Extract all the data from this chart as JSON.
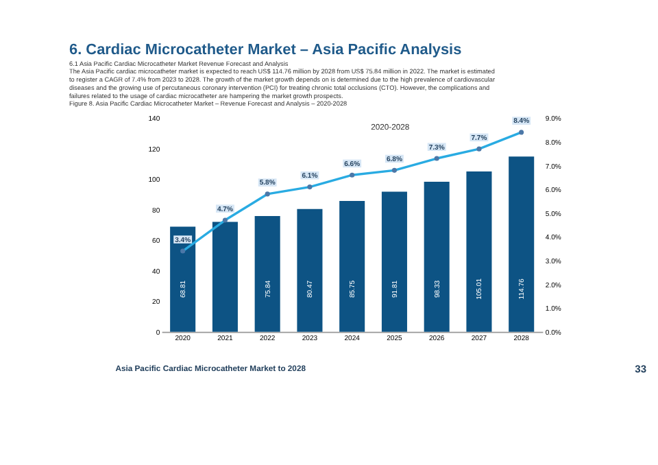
{
  "chart_data": {
    "type": "bar",
    "title": "6. Cardiac Microcatheter Market – Asia Pacific Analysis",
    "subtitle": "6.1 Asia Pacific Cardiac Microcatheter Market Revenue Forecast and Analysis",
    "annotations": [
      "The Asia Pacific cardiac microcatheter market is expected to reach US$ 114.76 million by 2028 from US$ 75.84 million in 2022. The market is estimated to register a CAGR of 7.4% from 2023 to 2028. The growth of the market growth depends on is determined due to the high prevalence of cardiovascular diseases and the growing use of percutaneous coronary intervention (PCI) for treating chronic total occlusions (CTO). However, the complications and failures related to the usage of cardiac microcatheter are hampering the market growth prospects.",
      "Figure 8.  Asia Pacific Cardiac Microcatheter Market – Revenue Forecast and Analysis – 2020-2028",
      "2020-2028",
      "Asia Pacific Cardiac Microcatheter Market to 2028",
      "33"
    ],
    "categories": [
      "2020",
      "2021",
      "2022",
      "2023",
      "2024",
      "2025",
      "2026",
      "2027",
      "2028"
    ],
    "series": [
      {
        "color": "#0d5384",
        "values": [
          68.81,
          72,
          75.84,
          80.47,
          85.75,
          91.81,
          98.33,
          105.01,
          114.76
        ],
        "value_labels": [
          "68.81",
          null,
          "75.84",
          "80.47",
          "85.75",
          "91.81",
          "98.33",
          "105.01",
          "114.76"
        ]
      },
      {
        "type": "line",
        "axis": "y2",
        "color": "#29abe2",
        "values": [
          3.4,
          4.7,
          5.8,
          6.1,
          6.6,
          6.8,
          7.3,
          7.7,
          8.4
        ],
        "value_labels": [
          "3.4%",
          "4.7%",
          "5.8%",
          "6.1%",
          "6.6%",
          "6.8%",
          "7.3%",
          "7.7%",
          "8.4%"
        ]
      }
    ],
    "ylim": [
      0,
      140
    ],
    "yticks": [
      0,
      20,
      40,
      60,
      80,
      100,
      120,
      140
    ],
    "y2lim": [
      0,
      9
    ],
    "y2ticks": [
      {
        "value": 0,
        "label": "0.0%"
      },
      {
        "value": 1,
        "label": "1.0%"
      },
      {
        "value": 2,
        "label": "2.0%"
      },
      {
        "value": 3,
        "label": "3.0%"
      },
      {
        "value": 4,
        "label": "4.0%"
      },
      {
        "value": 5,
        "label": "5.0%"
      },
      {
        "value": 6,
        "label": "6.0%"
      },
      {
        "value": 7,
        "label": "7.0%"
      },
      {
        "value": 8,
        "label": "8.0%"
      },
      {
        "value": 9,
        "label": "9.0%"
      }
    ],
    "marker": "circle",
    "grid": false
  }
}
